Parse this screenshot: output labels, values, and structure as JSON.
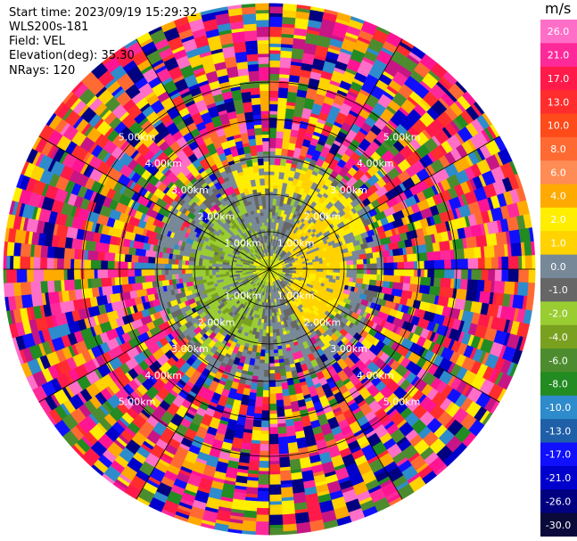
{
  "header": {
    "start_time": "Start time: 2023/09/19 15:29:32",
    "instrument": "WLS200s-181",
    "field": "Field: VEL",
    "elevation": "Elevation(deg): 35.30",
    "nrays": "NRays: 120"
  },
  "range_rings": {
    "labels": [
      "1.00km",
      "2.00km",
      "3.00km",
      "4.00km",
      "5.00km"
    ],
    "max_km": 7.1
  },
  "colorbar": {
    "unit": "m/s",
    "tick_labels": [
      "26.0",
      "21.0",
      "17.0",
      "13.0",
      "10.0",
      "8.0",
      "6.0",
      "4.0",
      "2.0",
      "1.0",
      "0.0",
      "-1.0",
      "-2.0",
      "-4.0",
      "-6.0",
      "-8.0",
      "-10.0",
      "-13.0",
      "-17.0",
      "-21.0",
      "-26.0",
      "-30.0"
    ],
    "colors": [
      "#ff6fc8",
      "#ff2a9a",
      "#ff1a4a",
      "#ff2d2d",
      "#ff4a1a",
      "#ff6a33",
      "#ff8c55",
      "#ffaa00",
      "#ffee00",
      "#ffd200",
      "#778899",
      "#666666",
      "#9acd32",
      "#7aa020",
      "#4c8c2e",
      "#228b22",
      "#2e8bcc",
      "#1f5fa8",
      "#1010ff",
      "#0000cc",
      "#000080",
      "#0a0a3a"
    ]
  }
}
